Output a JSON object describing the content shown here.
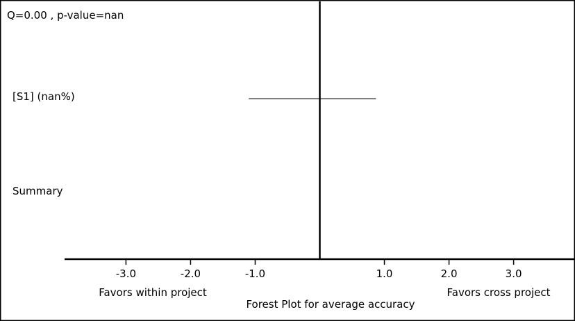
{
  "header": {
    "stats": "Q=0.00 , p-value=nan"
  },
  "chart_data": {
    "type": "forest",
    "title": "Forest Plot for average accuracy",
    "xlim": [
      -3.95,
      3.95
    ],
    "reference_line": 0,
    "ticks": [
      {
        "value": -3.0,
        "label": "-3.0"
      },
      {
        "value": -2.0,
        "label": "-2.0"
      },
      {
        "value": -1.0,
        "label": "-1.0"
      },
      {
        "value": 1.0,
        "label": "1.0"
      },
      {
        "value": 2.0,
        "label": "2.0"
      },
      {
        "value": 3.0,
        "label": "3.0"
      }
    ],
    "left_label": "Favors within project",
    "right_label": "Favors cross project",
    "studies": [
      {
        "label": "[S1] (nan%)",
        "ci": [
          -1.1,
          0.87
        ]
      }
    ],
    "summary": {
      "label": "Summary"
    }
  }
}
